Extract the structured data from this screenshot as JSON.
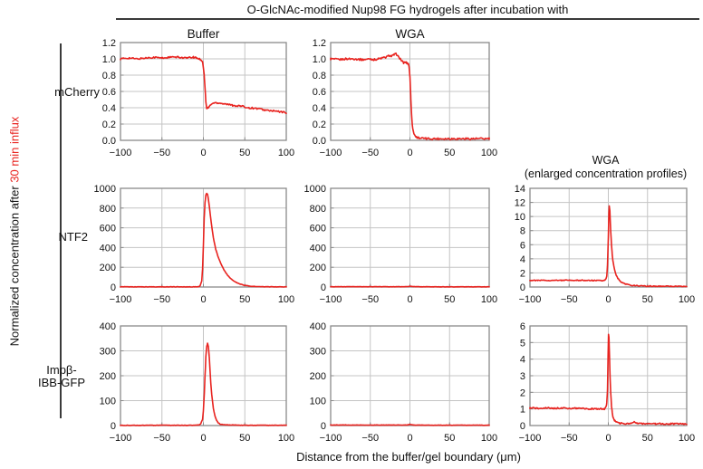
{
  "title": "O-GlcNAc-modified Nup98 FG hydrogels after incubation with",
  "columns": {
    "buffer": "Buffer",
    "wga": "WGA",
    "enlarged_line1": "WGA",
    "enlarged_line2": "(enlarged concentration profiles)"
  },
  "rows": {
    "mcherry": "mCherry",
    "ntf2": "NTF2",
    "impb_line1": "Impβ-",
    "impb_line2": "IBB-GFP"
  },
  "y_axis_label": {
    "black": "Normalized concentration after ",
    "red": "30 min influx"
  },
  "x_axis_label": "Distance from the buffer/gel boundary (μm)",
  "colors": {
    "curve": "#e8231f",
    "accent_text": "#e8231f",
    "grid": "#c4c4c4",
    "frame": "#8a8a8a",
    "text": "#111111"
  },
  "chart_data": [
    {
      "id": "mcherry-buffer",
      "type": "line",
      "row": "mCherry",
      "column": "Buffer",
      "xlim": [
        -100,
        100
      ],
      "xticks": [
        -100,
        -50,
        0,
        50,
        100
      ],
      "ylim": [
        0,
        1.2
      ],
      "yticks": [
        0,
        0.2,
        0.4,
        0.6,
        0.8,
        1.0,
        1.2
      ],
      "ydecimals": 1,
      "noise": 0.01,
      "points": [
        [
          -100,
          1.0
        ],
        [
          -90,
          1.01
        ],
        [
          -80,
          1.0
        ],
        [
          -70,
          1.01
        ],
        [
          -60,
          1.02
        ],
        [
          -50,
          1.01
        ],
        [
          -40,
          1.02
        ],
        [
          -30,
          1.02
        ],
        [
          -20,
          1.01
        ],
        [
          -12,
          1.02
        ],
        [
          -8,
          1.01
        ],
        [
          -5,
          1.0
        ],
        [
          -3,
          0.99
        ],
        [
          -1,
          0.97
        ],
        [
          1,
          0.8
        ],
        [
          3,
          0.47
        ],
        [
          4,
          0.39
        ],
        [
          6,
          0.4
        ],
        [
          9,
          0.44
        ],
        [
          13,
          0.46
        ],
        [
          18,
          0.46
        ],
        [
          25,
          0.45
        ],
        [
          35,
          0.43
        ],
        [
          45,
          0.42
        ],
        [
          55,
          0.4
        ],
        [
          65,
          0.39
        ],
        [
          75,
          0.37
        ],
        [
          85,
          0.36
        ],
        [
          100,
          0.34
        ]
      ]
    },
    {
      "id": "mcherry-wga",
      "type": "line",
      "row": "mCherry",
      "column": "WGA",
      "xlim": [
        -100,
        100
      ],
      "xticks": [
        -100,
        -50,
        0,
        50,
        100
      ],
      "ylim": [
        0,
        1.2
      ],
      "yticks": [
        0,
        0.2,
        0.4,
        0.6,
        0.8,
        1.0,
        1.2
      ],
      "ydecimals": 1,
      "noise": 0.012,
      "points": [
        [
          -100,
          1.0
        ],
        [
          -90,
          0.99
        ],
        [
          -80,
          1.0
        ],
        [
          -70,
          1.0
        ],
        [
          -60,
          0.99
        ],
        [
          -50,
          1.0
        ],
        [
          -45,
          0.99
        ],
        [
          -40,
          1.0
        ],
        [
          -35,
          1.01
        ],
        [
          -30,
          1.02
        ],
        [
          -26,
          1.04
        ],
        [
          -23,
          1.03
        ],
        [
          -20,
          1.05
        ],
        [
          -17,
          1.06
        ],
        [
          -15,
          1.03
        ],
        [
          -12,
          1.0
        ],
        [
          -10,
          0.97
        ],
        [
          -8,
          0.95
        ],
        [
          -6,
          0.96
        ],
        [
          -4,
          0.95
        ],
        [
          -2,
          0.94
        ],
        [
          -1,
          0.9
        ],
        [
          0,
          0.78
        ],
        [
          1,
          0.55
        ],
        [
          2,
          0.33
        ],
        [
          3,
          0.18
        ],
        [
          5,
          0.08
        ],
        [
          8,
          0.04
        ],
        [
          12,
          0.03
        ],
        [
          20,
          0.02
        ],
        [
          40,
          0.02
        ],
        [
          60,
          0.02
        ],
        [
          80,
          0.02
        ],
        [
          100,
          0.02
        ]
      ]
    },
    {
      "id": "ntf2-buffer",
      "type": "line",
      "row": "NTF2",
      "column": "Buffer",
      "xlim": [
        -100,
        100
      ],
      "xticks": [
        -100,
        -50,
        0,
        50,
        100
      ],
      "ylim": [
        0,
        1000
      ],
      "yticks": [
        0,
        200,
        400,
        600,
        800,
        1000
      ],
      "ydecimals": 0,
      "noise": 2,
      "points": [
        [
          -100,
          2
        ],
        [
          -50,
          2
        ],
        [
          -20,
          2
        ],
        [
          -10,
          2
        ],
        [
          -6,
          4
        ],
        [
          -4,
          10
        ],
        [
          -2,
          60
        ],
        [
          -1,
          180
        ],
        [
          0,
          420
        ],
        [
          1,
          700
        ],
        [
          2,
          860
        ],
        [
          3,
          930
        ],
        [
          4,
          950
        ],
        [
          5,
          940
        ],
        [
          6,
          890
        ],
        [
          8,
          760
        ],
        [
          10,
          620
        ],
        [
          12,
          500
        ],
        [
          15,
          380
        ],
        [
          18,
          300
        ],
        [
          21,
          240
        ],
        [
          25,
          170
        ],
        [
          30,
          110
        ],
        [
          35,
          70
        ],
        [
          40,
          45
        ],
        [
          45,
          28
        ],
        [
          50,
          17
        ],
        [
          55,
          10
        ],
        [
          60,
          6
        ],
        [
          70,
          3
        ],
        [
          80,
          2
        ],
        [
          100,
          1
        ]
      ]
    },
    {
      "id": "ntf2-wga",
      "type": "line",
      "row": "NTF2",
      "column": "WGA",
      "xlim": [
        -100,
        100
      ],
      "xticks": [
        -100,
        -50,
        0,
        50,
        100
      ],
      "ylim": [
        0,
        1000
      ],
      "yticks": [
        0,
        200,
        400,
        600,
        800,
        1000
      ],
      "ydecimals": 0,
      "noise": 1.2,
      "points": [
        [
          -100,
          3
        ],
        [
          -80,
          3
        ],
        [
          -60,
          3
        ],
        [
          -40,
          3
        ],
        [
          -20,
          3
        ],
        [
          -10,
          3
        ],
        [
          -5,
          4
        ],
        [
          -2,
          5
        ],
        [
          0,
          8
        ],
        [
          2,
          6
        ],
        [
          5,
          4
        ],
        [
          10,
          3
        ],
        [
          30,
          2
        ],
        [
          60,
          2
        ],
        [
          100,
          2
        ]
      ]
    },
    {
      "id": "ntf2-wga-enlarged",
      "type": "line",
      "row": "NTF2",
      "column": "WGA (enlarged concentration profiles)",
      "xlim": [
        -100,
        100
      ],
      "xticks": [
        -100,
        -50,
        0,
        50,
        100
      ],
      "ylim": [
        0,
        14
      ],
      "yticks": [
        0,
        2,
        4,
        6,
        8,
        10,
        12,
        14
      ],
      "ydecimals": 0,
      "noise": 0.06,
      "points": [
        [
          -100,
          0.95
        ],
        [
          -90,
          0.93
        ],
        [
          -80,
          0.95
        ],
        [
          -70,
          0.94
        ],
        [
          -60,
          0.96
        ],
        [
          -50,
          0.95
        ],
        [
          -40,
          0.94
        ],
        [
          -30,
          0.95
        ],
        [
          -20,
          0.93
        ],
        [
          -15,
          0.92
        ],
        [
          -10,
          0.9
        ],
        [
          -7,
          0.92
        ],
        [
          -5,
          0.98
        ],
        [
          -4,
          1.05
        ],
        [
          -3,
          1.2
        ],
        [
          -2,
          1.6
        ],
        [
          -1,
          3.2
        ],
        [
          0,
          7.0
        ],
        [
          0.7,
          10.5
        ],
        [
          1.2,
          11.5
        ],
        [
          2,
          10.8
        ],
        [
          3,
          8.0
        ],
        [
          4,
          6.0
        ],
        [
          5,
          4.6
        ],
        [
          6,
          3.6
        ],
        [
          8,
          2.4
        ],
        [
          10,
          1.7
        ],
        [
          12,
          1.25
        ],
        [
          15,
          0.85
        ],
        [
          18,
          0.6
        ],
        [
          22,
          0.42
        ],
        [
          26,
          0.3
        ],
        [
          30,
          0.24
        ],
        [
          40,
          0.16
        ],
        [
          50,
          0.12
        ],
        [
          60,
          0.11
        ],
        [
          80,
          0.1
        ],
        [
          100,
          0.1
        ]
      ]
    },
    {
      "id": "impb-buffer",
      "type": "line",
      "row": "Impβ-IBB-GFP",
      "column": "Buffer",
      "xlim": [
        -100,
        100
      ],
      "xticks": [
        -100,
        -50,
        0,
        50,
        100
      ],
      "ylim": [
        0,
        400
      ],
      "yticks": [
        0,
        100,
        200,
        300,
        400
      ],
      "ydecimals": 0,
      "noise": 1,
      "points": [
        [
          -100,
          1
        ],
        [
          -60,
          1
        ],
        [
          -30,
          1
        ],
        [
          -15,
          1
        ],
        [
          -10,
          1
        ],
        [
          -7,
          2
        ],
        [
          -5,
          3
        ],
        [
          -3,
          8
        ],
        [
          -1,
          25
        ],
        [
          0,
          60
        ],
        [
          1,
          120
        ],
        [
          2,
          200
        ],
        [
          3,
          275
        ],
        [
          4,
          318
        ],
        [
          5,
          330
        ],
        [
          6,
          318
        ],
        [
          7,
          280
        ],
        [
          8,
          225
        ],
        [
          9,
          170
        ],
        [
          10,
          125
        ],
        [
          12,
          70
        ],
        [
          14,
          38
        ],
        [
          16,
          20
        ],
        [
          18,
          11
        ],
        [
          20,
          6
        ],
        [
          24,
          3
        ],
        [
          30,
          2
        ],
        [
          50,
          1
        ],
        [
          100,
          1
        ]
      ]
    },
    {
      "id": "impb-wga",
      "type": "line",
      "row": "Impβ-IBB-GFP",
      "column": "WGA",
      "xlim": [
        -100,
        100
      ],
      "xticks": [
        -100,
        -50,
        0,
        50,
        100
      ],
      "ylim": [
        0,
        400
      ],
      "yticks": [
        0,
        100,
        200,
        300,
        400
      ],
      "ydecimals": 0,
      "noise": 0.8,
      "points": [
        [
          -100,
          2
        ],
        [
          -50,
          2
        ],
        [
          -20,
          2
        ],
        [
          -5,
          2
        ],
        [
          -2,
          3
        ],
        [
          0,
          5
        ],
        [
          2,
          3
        ],
        [
          5,
          2
        ],
        [
          20,
          1.5
        ],
        [
          60,
          1.5
        ],
        [
          100,
          1.5
        ]
      ]
    },
    {
      "id": "impb-wga-enlarged",
      "type": "line",
      "row": "Impβ-IBB-GFP",
      "column": "WGA (enlarged concentration profiles)",
      "xlim": [
        -100,
        100
      ],
      "xticks": [
        -100,
        -50,
        0,
        50,
        100
      ],
      "ylim": [
        0,
        6
      ],
      "yticks": [
        0,
        1,
        2,
        3,
        4,
        5,
        6
      ],
      "ydecimals": 0,
      "noise": 0.045,
      "points": [
        [
          -100,
          1.05
        ],
        [
          -90,
          1.03
        ],
        [
          -80,
          1.06
        ],
        [
          -70,
          1.04
        ],
        [
          -60,
          1.05
        ],
        [
          -50,
          1.03
        ],
        [
          -40,
          1.04
        ],
        [
          -30,
          1.02
        ],
        [
          -20,
          1.0
        ],
        [
          -15,
          1.02
        ],
        [
          -10,
          1.0
        ],
        [
          -8,
          0.98
        ],
        [
          -6,
          0.97
        ],
        [
          -5,
          1.0
        ],
        [
          -4,
          1.05
        ],
        [
          -3,
          1.1
        ],
        [
          -2,
          1.35
        ],
        [
          -1,
          2.2
        ],
        [
          -0.3,
          4.2
        ],
        [
          0.2,
          5.5
        ],
        [
          0.8,
          5.3
        ],
        [
          1.5,
          4.2
        ],
        [
          2,
          3.3
        ],
        [
          3,
          2.0
        ],
        [
          4,
          1.2
        ],
        [
          5,
          0.75
        ],
        [
          6,
          0.5
        ],
        [
          8,
          0.3
        ],
        [
          10,
          0.22
        ],
        [
          14,
          0.15
        ],
        [
          20,
          0.12
        ],
        [
          28,
          0.12
        ],
        [
          33,
          0.2
        ],
        [
          36,
          0.16
        ],
        [
          40,
          0.12
        ],
        [
          60,
          0.1
        ],
        [
          80,
          0.1
        ],
        [
          100,
          0.1
        ]
      ]
    }
  ]
}
